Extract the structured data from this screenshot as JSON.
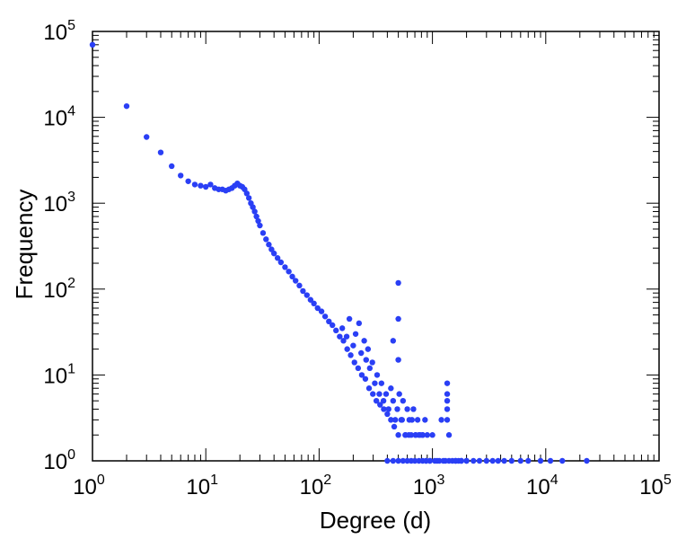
{
  "chart_data": {
    "type": "scatter",
    "title": "",
    "xlabel": "Degree (d)",
    "ylabel": "Frequency",
    "xscale": "log",
    "yscale": "log",
    "xlim": [
      1,
      100000
    ],
    "ylim": [
      1,
      100000
    ],
    "grid": false,
    "legend": "none",
    "x_tick_labels": [
      {
        "base": "10",
        "exp": "0"
      },
      {
        "base": "10",
        "exp": "1"
      },
      {
        "base": "10",
        "exp": "2"
      },
      {
        "base": "10",
        "exp": "3"
      },
      {
        "base": "10",
        "exp": "4"
      },
      {
        "base": "10",
        "exp": "5"
      }
    ],
    "y_tick_labels": [
      {
        "base": "10",
        "exp": "0"
      },
      {
        "base": "10",
        "exp": "1"
      },
      {
        "base": "10",
        "exp": "2"
      },
      {
        "base": "10",
        "exp": "3"
      },
      {
        "base": "10",
        "exp": "4"
      },
      {
        "base": "10",
        "exp": "5"
      }
    ],
    "marker_color": "#2a3ff5",
    "series": [
      {
        "x": [
          1,
          2,
          3,
          4,
          5,
          6,
          7,
          8,
          9,
          10,
          11,
          12,
          13,
          14,
          15,
          16,
          17,
          18,
          19,
          20,
          21,
          22,
          23,
          24,
          25,
          26,
          27,
          28,
          29,
          30,
          32,
          34,
          36,
          38,
          40,
          43,
          46,
          50,
          54,
          58,
          62,
          67,
          72,
          78,
          84,
          90,
          97,
          105,
          113,
          122,
          131,
          141,
          152,
          164,
          177,
          190,
          205,
          221,
          238,
          256,
          276,
          298,
          320,
          345,
          372,
          400,
          430,
          460,
          500,
          540,
          580,
          620,
          660,
          710,
          760,
          820,
          880,
          950,
          1000,
          1100,
          1200,
          1300,
          1400,
          1500,
          1600,
          1700,
          1800,
          2000
        ],
        "y": [
          70000,
          13500,
          5900,
          3900,
          2700,
          2100,
          1800,
          1650,
          1600,
          1550,
          1650,
          1500,
          1450,
          1450,
          1400,
          1450,
          1500,
          1600,
          1700,
          1600,
          1550,
          1450,
          1300,
          1150,
          1000,
          900,
          800,
          700,
          620,
          550,
          450,
          380,
          330,
          290,
          260,
          230,
          205,
          180,
          160,
          140,
          125,
          110,
          95,
          85,
          75,
          68,
          60,
          55,
          48,
          42,
          38,
          33,
          28,
          25,
          20,
          17,
          14,
          12,
          10,
          9,
          7,
          6,
          5,
          4.5,
          4,
          3.5,
          3,
          2.5,
          2,
          3,
          2,
          2,
          3,
          2,
          2,
          2,
          1,
          1,
          2,
          1,
          3,
          1,
          2,
          1,
          1,
          1,
          1,
          1
        ]
      },
      {
        "x": [
          160,
          175,
          185,
          200,
          210,
          225,
          235,
          250,
          260,
          270,
          280,
          295,
          310,
          325,
          340,
          355,
          370,
          390,
          410,
          430,
          450,
          470,
          490,
          510,
          530,
          550,
          575,
          600,
          625,
          650,
          680,
          710,
          740,
          780,
          820,
          860,
          900,
          1350,
          1350,
          1350,
          1350,
          1350
        ],
        "y": [
          35,
          28,
          45,
          22,
          30,
          40,
          18,
          25,
          15,
          20,
          12,
          14,
          8,
          10,
          6,
          8,
          5,
          6,
          4,
          7,
          5,
          3,
          4,
          6,
          3,
          5,
          2,
          4,
          3,
          2,
          4,
          2,
          3,
          2,
          2,
          3,
          2,
          8,
          6,
          5,
          4,
          3
        ]
      },
      {
        "x": [
          400,
          450,
          500,
          550,
          600,
          650,
          700,
          760,
          820,
          880,
          950,
          1050,
          1150,
          1250,
          1400,
          1600,
          1800,
          2000,
          2300,
          2600,
          3000,
          3400,
          3800,
          4300,
          5000,
          6000,
          7000,
          9000,
          11000,
          14000,
          23000
        ],
        "y": [
          1,
          1,
          1,
          1,
          1,
          1,
          1,
          1,
          1,
          1,
          1,
          1,
          1,
          1,
          1,
          1,
          1,
          1,
          1,
          1,
          1,
          1,
          1,
          1,
          1,
          1,
          1,
          1,
          1,
          1,
          1
        ]
      },
      {
        "x": [
          500,
          500,
          500,
          450
        ],
        "y": [
          118,
          45,
          15,
          25
        ]
      }
    ]
  }
}
